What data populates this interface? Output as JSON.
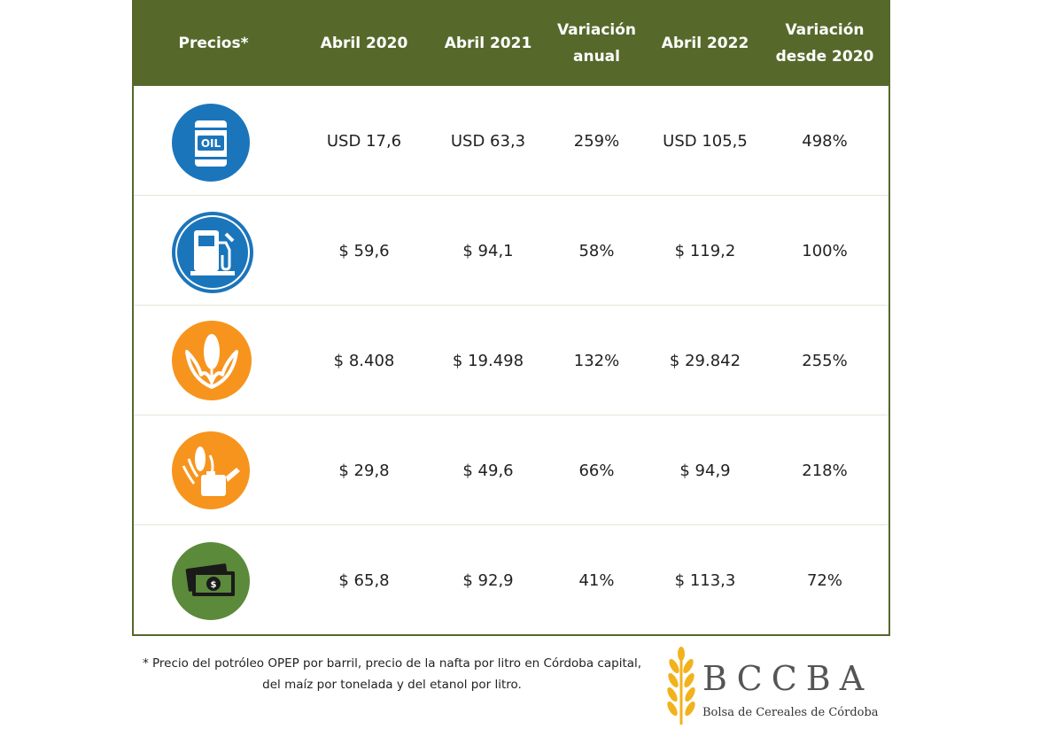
{
  "header": {
    "columns": [
      "Precios*",
      "Abril 2020",
      "Abril 2021",
      "Variación\nanual",
      "Abril 2022",
      "Variación\ndesde 2020"
    ]
  },
  "colors": {
    "header_bg": "#56692b",
    "blue": "#1b75bb",
    "orange": "#f7941d",
    "green": "#5b8a3a"
  },
  "rows": [
    {
      "icon": "oil-barrel-icon",
      "icon_text": "OIL",
      "values": [
        "USD 17,6",
        "USD 63,3",
        "259%",
        "USD 105,5",
        "498%"
      ]
    },
    {
      "icon": "fuel-pump-icon",
      "values": [
        "$ 59,6",
        "$ 94,1",
        "58%",
        "$ 119,2",
        "100%"
      ]
    },
    {
      "icon": "corn-icon",
      "values": [
        "$ 8.408",
        "$ 19.498",
        "132%",
        "$ 29.842",
        "255%"
      ]
    },
    {
      "icon": "ethanol-icon",
      "values": [
        "$ 29,8",
        "$ 49,6",
        "66%",
        "$ 94,9",
        "218%"
      ]
    },
    {
      "icon": "money-icon",
      "values": [
        "$ 65,8",
        "$ 92,9",
        "41%",
        "$ 113,3",
        "72%"
      ]
    }
  ],
  "footnote": "* Precio del potróleo OPEP por barril, precio de la nafta por litro en Córdoba capital, del maíz por tonelada y del etanol por litro.",
  "logo": {
    "letters": "BCCBA",
    "subtitle": "Bolsa de Cereales de Córdoba"
  }
}
